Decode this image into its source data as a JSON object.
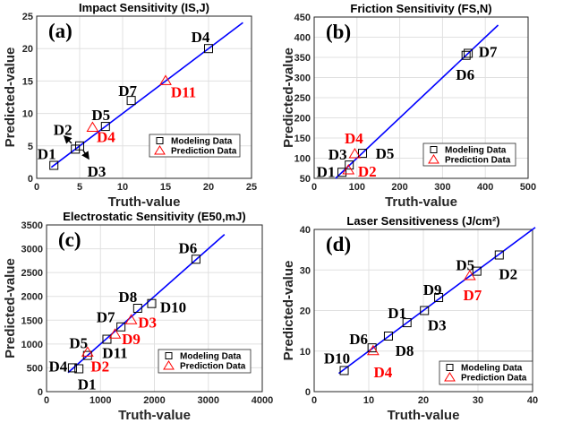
{
  "colors": {
    "modeling": "#000000",
    "prediction": "#ff0000",
    "fit_line": "#0000ff",
    "grid": "#e0e0e0",
    "prediction_label": "#ff0000"
  },
  "chart_data": [
    {
      "type": "scatter",
      "panel": "(a)",
      "title": "Impact Sensitivity (IS,J)",
      "xlabel": "Truth-value",
      "ylabel": "Predicted-value",
      "xlim": [
        0,
        25
      ],
      "ylim": [
        0,
        25
      ],
      "xticks": [
        0,
        5,
        10,
        15,
        20,
        25
      ],
      "yticks": [
        0,
        5,
        10,
        15,
        20,
        25
      ],
      "grid": true,
      "legend_position": "lower-right",
      "legend": [
        "Modeling Data",
        "Prediction Data"
      ],
      "fit_line": [
        [
          1.7,
          1.7
        ],
        [
          24,
          24
        ]
      ],
      "modeling": [
        {
          "label": "D1",
          "x": 2,
          "y": 2
        },
        {
          "label": "D2",
          "x": 4.5,
          "y": 4.5
        },
        {
          "label": "D3",
          "x": 5,
          "y": 5
        },
        {
          "label": "D5",
          "x": 8,
          "y": 8
        },
        {
          "label": "D7",
          "x": 11,
          "y": 12
        },
        {
          "label": "D4",
          "x": 20,
          "y": 20
        }
      ],
      "prediction": [
        {
          "label": "D4",
          "x": 6.5,
          "y": 7.8
        },
        {
          "label": "D11",
          "x": 15,
          "y": 15
        }
      ]
    },
    {
      "type": "scatter",
      "panel": "(b)",
      "title": "Friction Sensitivity (FS,N)",
      "xlabel": "Truth-value",
      "ylabel": "Predicted-value",
      "xlim": [
        0,
        500
      ],
      "ylim": [
        50,
        450
      ],
      "xticks": [
        0,
        100,
        200,
        300,
        400,
        500
      ],
      "yticks": [
        50,
        100,
        150,
        200,
        250,
        300,
        350,
        400,
        450
      ],
      "grid": true,
      "legend_position": "lower-right",
      "legend": [
        "Modeling Data",
        "Prediction Data"
      ],
      "fit_line": [
        [
          50,
          50
        ],
        [
          430,
          430
        ]
      ],
      "modeling": [
        {
          "label": "D1",
          "x": 65,
          "y": 65
        },
        {
          "label": "D3",
          "x": 82,
          "y": 83
        },
        {
          "label": "D5",
          "x": 113,
          "y": 112
        },
        {
          "label": "D6",
          "x": 355,
          "y": 355
        },
        {
          "label": "D7",
          "x": 360,
          "y": 360
        }
      ],
      "prediction": [
        {
          "label": "D2",
          "x": 80,
          "y": 70
        },
        {
          "label": "D4",
          "x": 95,
          "y": 110
        }
      ]
    },
    {
      "type": "scatter",
      "panel": "(c)",
      "title": "Electrostatic Sensitivity (E50,mJ)",
      "xlabel": "Truth-value",
      "ylabel": "Predicted-value",
      "xlim": [
        0,
        4000
      ],
      "ylim": [
        0,
        3500
      ],
      "xticks": [
        0,
        1000,
        2000,
        3000,
        4000
      ],
      "yticks": [
        0,
        500,
        1000,
        1500,
        2000,
        2500,
        3000,
        3500
      ],
      "grid": true,
      "legend_position": "lower-right",
      "legend": [
        "Modeling Data",
        "Prediction Data"
      ],
      "fit_line": [
        [
          400,
          400
        ],
        [
          3300,
          3300
        ]
      ],
      "modeling": [
        {
          "label": "D4",
          "x": 480,
          "y": 500
        },
        {
          "label": "D1",
          "x": 600,
          "y": 480
        },
        {
          "label": "D5",
          "x": 760,
          "y": 760
        },
        {
          "label": "D11",
          "x": 1120,
          "y": 1100
        },
        {
          "label": "D7",
          "x": 1380,
          "y": 1360
        },
        {
          "label": "D8",
          "x": 1690,
          "y": 1750
        },
        {
          "label": "D10",
          "x": 1950,
          "y": 1850
        },
        {
          "label": "D6",
          "x": 2770,
          "y": 2780
        }
      ],
      "prediction": [
        {
          "label": "D2",
          "x": 760,
          "y": 820
        },
        {
          "label": "D9",
          "x": 1270,
          "y": 1200
        },
        {
          "label": "D3",
          "x": 1570,
          "y": 1500
        }
      ]
    },
    {
      "type": "scatter",
      "panel": "(d)",
      "title": "Laser Sensitiveness (J/cm²)",
      "xlabel": "Truth-value",
      "ylabel": "Predicted-value",
      "xlim": [
        0,
        40
      ],
      "ylim": [
        0,
        40
      ],
      "xticks": [
        0,
        10,
        20,
        30,
        40
      ],
      "yticks": [
        0,
        10,
        20,
        30,
        40
      ],
      "grid": true,
      "legend_position": "lower-right",
      "legend": [
        "Modeling Data",
        "Prediction Data"
      ],
      "fit_line": [
        [
          4.5,
          4.5
        ],
        [
          40.5,
          40.5
        ]
      ],
      "modeling": [
        {
          "label": "D10",
          "x": 5.5,
          "y": 5.2
        },
        {
          "label": "D6",
          "x": 10.6,
          "y": 10.8
        },
        {
          "label": "D8",
          "x": 13.6,
          "y": 13.7
        },
        {
          "label": "D1",
          "x": 17,
          "y": 17
        },
        {
          "label": "D3",
          "x": 20.2,
          "y": 20
        },
        {
          "label": "D9",
          "x": 22.8,
          "y": 23.2
        },
        {
          "label": "D5",
          "x": 29.8,
          "y": 29.7
        },
        {
          "label": "D2",
          "x": 33.9,
          "y": 33.7
        }
      ],
      "prediction": [
        {
          "label": "D4",
          "x": 10.8,
          "y": 10
        },
        {
          "label": "D7",
          "x": 28.5,
          "y": 28.5
        }
      ]
    }
  ]
}
